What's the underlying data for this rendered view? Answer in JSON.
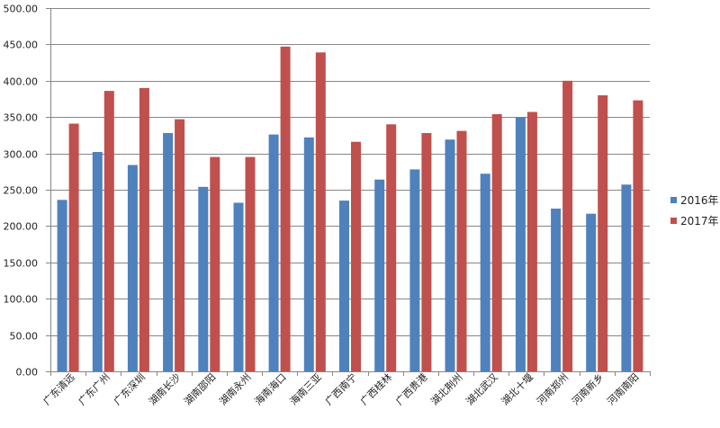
{
  "chart_data": {
    "type": "bar",
    "categories": [
      "广东清远",
      "广东广州",
      "广东深圳",
      "湖南长沙",
      "湖南邵阳",
      "湖南永州",
      "海南海口",
      "海南三亚",
      "广西南宁",
      "广西桂林",
      "广西贵港",
      "湖北荆州",
      "湖北武汉",
      "湖北十堰",
      "河南郑州",
      "河南新乡",
      "河南南阳"
    ],
    "series": [
      {
        "name": "2016年",
        "color": "#4F81BD",
        "values": [
          236,
          302,
          284,
          328,
          254,
          232,
          326,
          322,
          235,
          264,
          278,
          319,
          272,
          350,
          224,
          217,
          257
        ]
      },
      {
        "name": "2017年",
        "color": "#C0504D",
        "values": [
          341,
          386,
          390,
          347,
          295,
          295,
          447,
          439,
          316,
          340,
          328,
          331,
          354,
          357,
          400,
          380,
          373
        ]
      }
    ],
    "ylim": [
      0,
      500
    ],
    "yticks": [
      "0.00",
      "50.00",
      "100.00",
      "150.00",
      "200.00",
      "250.00",
      "300.00",
      "350.00",
      "400.00",
      "450.00",
      "500.00"
    ],
    "grid": true,
    "legend_position": "right",
    "axis_color": "#868686",
    "grid_color": "#868686"
  }
}
